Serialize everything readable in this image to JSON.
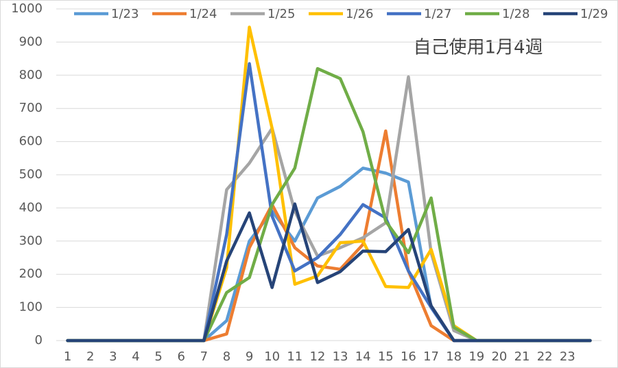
{
  "chart_data": {
    "type": "line",
    "annotation": "自己使用1月4週",
    "categories": [
      "1",
      "2",
      "3",
      "4",
      "5",
      "6",
      "7",
      "8",
      "9",
      "10",
      "11",
      "12",
      "13",
      "14",
      "15",
      "16",
      "17",
      "18",
      "19",
      "20",
      "21",
      "22",
      "23",
      null
    ],
    "series": [
      {
        "name": "1/23",
        "color": "#5b9bd5",
        "values": [
          0,
          0,
          0,
          0,
          0,
          0,
          0,
          60,
          300,
          390,
          300,
          430,
          465,
          520,
          505,
          478,
          100,
          0,
          0,
          0,
          0,
          0,
          0,
          0
        ]
      },
      {
        "name": "1/24",
        "color": "#ed7d31",
        "values": [
          0,
          0,
          0,
          0,
          0,
          0,
          0,
          20,
          280,
          410,
          280,
          225,
          215,
          290,
          632,
          210,
          45,
          0,
          0,
          0,
          0,
          0,
          0,
          0
        ]
      },
      {
        "name": "1/25",
        "color": "#a5a5a5",
        "values": [
          0,
          0,
          0,
          0,
          0,
          0,
          0,
          455,
          535,
          640,
          390,
          255,
          280,
          310,
          355,
          795,
          265,
          30,
          0,
          0,
          0,
          0,
          0,
          0
        ]
      },
      {
        "name": "1/26",
        "color": "#ffc000",
        "values": [
          0,
          0,
          0,
          0,
          0,
          0,
          0,
          220,
          945,
          640,
          170,
          195,
          295,
          300,
          163,
          160,
          275,
          45,
          0,
          0,
          0,
          0,
          0,
          0
        ]
      },
      {
        "name": "1/27",
        "color": "#4472c4",
        "values": [
          0,
          0,
          0,
          0,
          0,
          0,
          0,
          320,
          835,
          375,
          210,
          250,
          320,
          410,
          370,
          210,
          100,
          0,
          0,
          0,
          0,
          0,
          0,
          0
        ]
      },
      {
        "name": "1/28",
        "color": "#70ad47",
        "values": [
          0,
          0,
          0,
          0,
          0,
          0,
          0,
          145,
          190,
          410,
          520,
          820,
          790,
          630,
          360,
          265,
          430,
          40,
          0,
          0,
          0,
          0,
          0,
          0
        ]
      },
      {
        "name": "1/29",
        "color": "#264478",
        "values": [
          0,
          0,
          0,
          0,
          0,
          0,
          0,
          240,
          385,
          160,
          412,
          175,
          208,
          270,
          268,
          335,
          105,
          0,
          0,
          0,
          0,
          0,
          0,
          0
        ]
      }
    ],
    "ylim": [
      0,
      1000
    ],
    "yticks": [
      0,
      100,
      200,
      300,
      400,
      500,
      600,
      700,
      800,
      900,
      1000
    ],
    "grid": true
  }
}
